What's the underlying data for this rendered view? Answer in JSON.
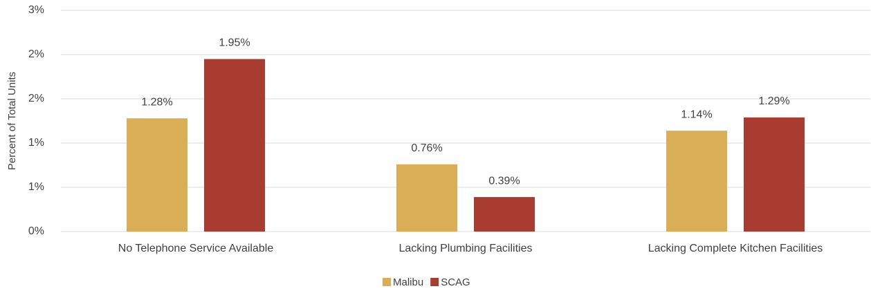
{
  "chart_data": {
    "type": "bar",
    "y_label": "Percent of Total Units",
    "categories": [
      "No Telephone Service Available",
      "Lacking Plumbing Facilities",
      "Lacking Complete Kitchen Facilities"
    ],
    "series": [
      {
        "name": "Malibu",
        "color": "#d9ae57",
        "values": [
          1.28,
          0.76,
          1.14
        ],
        "value_labels": [
          "1.28%",
          "0.76%",
          "1.14%"
        ]
      },
      {
        "name": "SCAG",
        "color": "#a93c31",
        "values": [
          1.95,
          0.39,
          1.29
        ],
        "value_labels": [
          "1.95%",
          "0.39%",
          "1.29%"
        ]
      }
    ],
    "ylim": [
      0,
      2.5
    ],
    "yticks": [
      {
        "value": 0,
        "label": "0%"
      },
      {
        "value": 0.5,
        "label": "1%"
      },
      {
        "value": 1,
        "label": "1%"
      },
      {
        "value": 1.5,
        "label": "2%"
      },
      {
        "value": 2,
        "label": "2%"
      },
      {
        "value": 2.5,
        "label": "3%"
      }
    ],
    "grid": true,
    "legend": "bottom"
  }
}
